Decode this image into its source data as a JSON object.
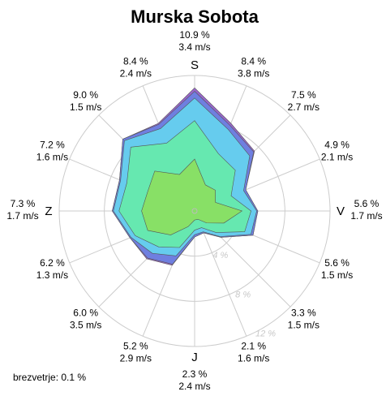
{
  "chart_data": {
    "type": "windrose",
    "title": "Murska Sobota",
    "cardinals": [
      "S",
      "V",
      "J",
      "Z"
    ],
    "directions": [
      {
        "pct": "10.9 %",
        "speed": "3.4 m/s"
      },
      {
        "pct": "8.4 %",
        "speed": "3.8 m/s"
      },
      {
        "pct": "7.5 %",
        "speed": "2.7 m/s"
      },
      {
        "pct": "4.9 %",
        "speed": "2.1 m/s"
      },
      {
        "pct": "5.6 %",
        "speed": "1.7 m/s"
      },
      {
        "pct": "5.6 %",
        "speed": "1.5 m/s"
      },
      {
        "pct": "3.3 %",
        "speed": "1.5 m/s"
      },
      {
        "pct": "2.1 %",
        "speed": "1.6 m/s"
      },
      {
        "pct": "2.3 %",
        "speed": "2.4 m/s"
      },
      {
        "pct": "5.2 %",
        "speed": "2.9 m/s"
      },
      {
        "pct": "6.0 %",
        "speed": "3.5 m/s"
      },
      {
        "pct": "6.2 %",
        "speed": "1.3 m/s"
      },
      {
        "pct": "7.3 %",
        "speed": "1.7 m/s"
      },
      {
        "pct": "7.2 %",
        "speed": "1.6 m/s"
      },
      {
        "pct": "9.0 %",
        "speed": "1.5 m/s"
      },
      {
        "pct": "8.4 %",
        "speed": "2.4 m/s"
      }
    ],
    "series": [
      {
        "color": "#88e066",
        "values": [
          4.6,
          2.5,
          2.6,
          2.0,
          4.2,
          2.8,
          1.5,
          0.8,
          0.8,
          1.5,
          3.0,
          4.5,
          4.7,
          4.5,
          5.0,
          3.5
        ]
      },
      {
        "color": "#66e8b0",
        "values": [
          3.4,
          3.0,
          2.5,
          1.5,
          0.8,
          2.0,
          1.2,
          0.8,
          0.9,
          2.0,
          1.5,
          1.2,
          2.0,
          2.0,
          3.0,
          3.0
        ]
      },
      {
        "color": "#66ccee",
        "values": [
          2.0,
          2.3,
          1.8,
          1.2,
          0.5,
          0.6,
          0.5,
          0.4,
          0.4,
          0.8,
          0.8,
          0.4,
          0.5,
          0.6,
          0.8,
          1.4
        ]
      },
      {
        "color": "#6f7fe0",
        "values": [
          0.6,
          0.4,
          0.5,
          0.2,
          0.1,
          0.2,
          0.1,
          0.1,
          0.2,
          0.8,
          0.6,
          0.1,
          0.1,
          0.1,
          0.2,
          0.4
        ]
      },
      {
        "color": "#9966cc",
        "values": [
          0.3,
          0.2,
          0.1,
          0,
          0,
          0,
          0,
          0,
          0,
          0.1,
          0.1,
          0,
          0,
          0,
          0,
          0.1
        ]
      }
    ],
    "rlim": [
      0,
      12
    ],
    "rticks": [
      {
        "value": 4,
        "label": "4 %"
      },
      {
        "value": 8,
        "label": "8 %"
      },
      {
        "value": 12,
        "label": "12 %"
      }
    ],
    "calm": "brezvetrje: 0.1 %"
  }
}
